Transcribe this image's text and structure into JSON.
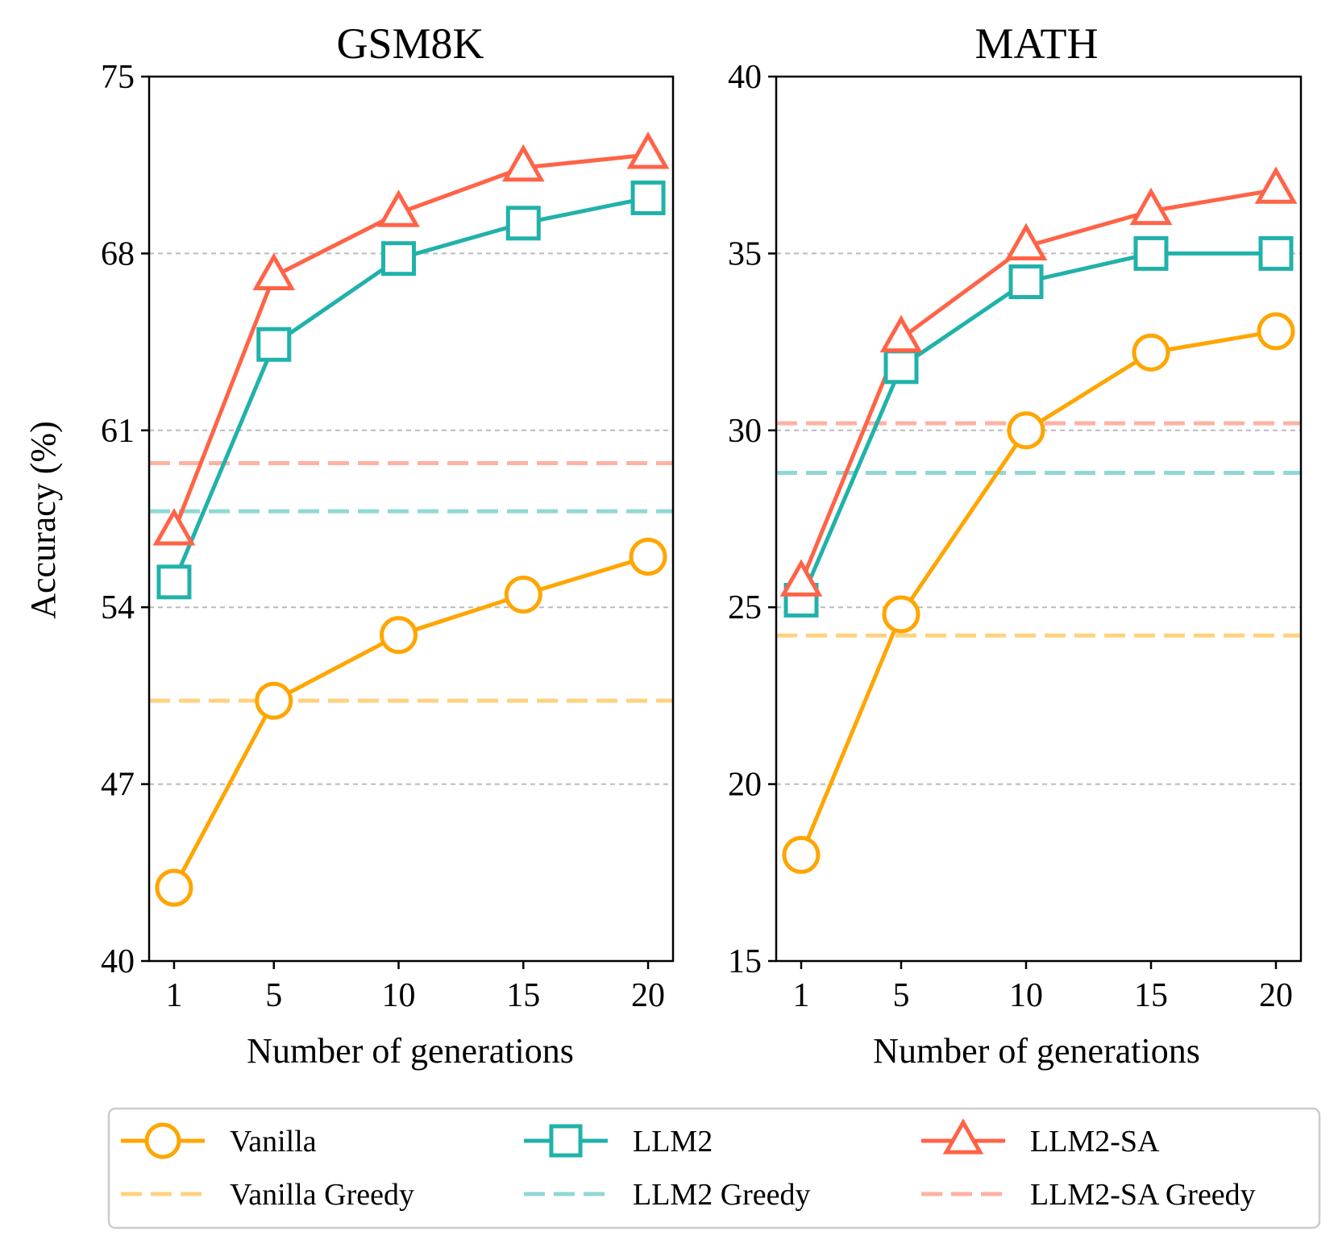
{
  "figure": {
    "ylabel": "Accuracy (%)"
  },
  "colors": {
    "Vanilla": "#FFA500",
    "LLM2": "#20B2AA",
    "LLM2-SA": "#FF6347",
    "grid": "#bbbbbb"
  },
  "legend": {
    "items": [
      {
        "label": "Vanilla",
        "series": "Vanilla",
        "kind": "line",
        "marker": "circle"
      },
      {
        "label": "LLM2",
        "series": "LLM2",
        "kind": "line",
        "marker": "square"
      },
      {
        "label": "LLM2-SA",
        "series": "LLM2-SA",
        "kind": "line",
        "marker": "triangle"
      },
      {
        "label": "Vanilla Greedy",
        "series": "Vanilla",
        "kind": "dashed"
      },
      {
        "label": "LLM2 Greedy",
        "series": "LLM2",
        "kind": "dashed"
      },
      {
        "label": "LLM2-SA Greedy",
        "series": "LLM2-SA",
        "kind": "dashed"
      }
    ]
  },
  "chart_data": [
    {
      "type": "line",
      "title": "GSM8K",
      "xlabel": "Number of generations",
      "ylabel": "Accuracy (%)",
      "x": [
        1,
        5,
        10,
        15,
        20
      ],
      "xlim": [
        0,
        21
      ],
      "ylim": [
        40,
        75
      ],
      "yticks": [
        40,
        47,
        54,
        61,
        68,
        75
      ],
      "gridlines": [
        47,
        54,
        61,
        68
      ],
      "series": [
        {
          "name": "Vanilla",
          "marker": "circle",
          "values": [
            42.9,
            50.3,
            52.9,
            54.5,
            56.0
          ]
        },
        {
          "name": "LLM2",
          "marker": "square",
          "values": [
            55.0,
            64.4,
            67.8,
            69.2,
            70.2
          ]
        },
        {
          "name": "LLM2-SA",
          "marker": "triangle",
          "values": [
            57.0,
            67.1,
            69.6,
            71.4,
            71.9
          ]
        }
      ],
      "greedy": [
        {
          "name": "Vanilla Greedy",
          "series": "Vanilla",
          "value": 50.3
        },
        {
          "name": "LLM2 Greedy",
          "series": "LLM2",
          "value": 57.8
        },
        {
          "name": "LLM2-SA Greedy",
          "series": "LLM2-SA",
          "value": 59.7
        }
      ]
    },
    {
      "type": "line",
      "title": "MATH",
      "xlabel": "Number of generations",
      "ylabel": "",
      "x": [
        1,
        5,
        10,
        15,
        20
      ],
      "xlim": [
        0,
        21
      ],
      "ylim": [
        15,
        40
      ],
      "yticks": [
        15,
        20,
        25,
        30,
        35,
        40
      ],
      "gridlines": [
        20,
        25,
        30,
        35
      ],
      "series": [
        {
          "name": "Vanilla",
          "marker": "circle",
          "values": [
            18.0,
            24.8,
            30.0,
            32.2,
            32.8
          ]
        },
        {
          "name": "LLM2",
          "marker": "square",
          "values": [
            25.2,
            31.8,
            34.2,
            35.0,
            35.0
          ]
        },
        {
          "name": "LLM2-SA",
          "marker": "triangle",
          "values": [
            25.7,
            32.6,
            35.2,
            36.2,
            36.8
          ]
        }
      ],
      "greedy": [
        {
          "name": "Vanilla Greedy",
          "series": "Vanilla",
          "value": 24.2
        },
        {
          "name": "LLM2 Greedy",
          "series": "LLM2",
          "value": 28.8
        },
        {
          "name": "LLM2-SA Greedy",
          "series": "LLM2-SA",
          "value": 30.2
        }
      ]
    }
  ]
}
